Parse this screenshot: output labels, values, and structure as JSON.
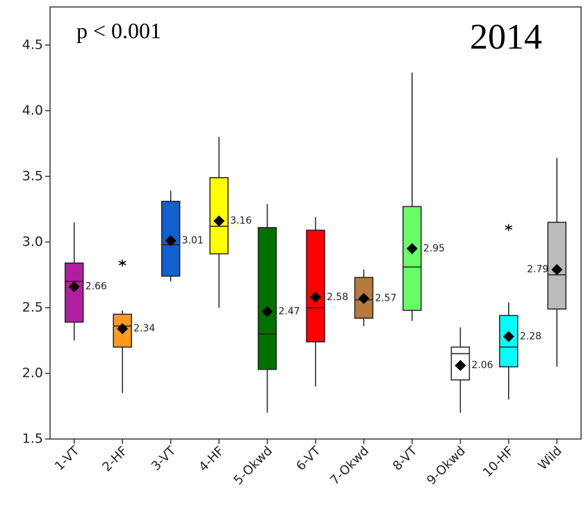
{
  "chart_data": {
    "type": "box",
    "annotations": [
      "p < 0.001",
      "2014"
    ],
    "categories": [
      "1-VT",
      "2-HF",
      "3-VT",
      "4-HF",
      "5-Okwd",
      "6-VT",
      "7-Okwd",
      "8-VT",
      "9-Okwd",
      "10-HF",
      "Wild"
    ],
    "boxes": [
      {
        "color": "#b01fa0",
        "min": 2.25,
        "q1": 2.39,
        "median": 2.7,
        "q3": 2.84,
        "max": 3.15,
        "mean": 2.66
      },
      {
        "color": "#ff9a1a",
        "min": 1.85,
        "q1": 2.2,
        "median": 2.36,
        "q3": 2.45,
        "max": 2.48,
        "mean": 2.34,
        "outliers": [
          2.84
        ]
      },
      {
        "color": "#1060d0",
        "min": 2.7,
        "q1": 2.74,
        "median": 2.98,
        "q3": 3.31,
        "max": 3.39,
        "mean": 3.01
      },
      {
        "color": "#ffff00",
        "min": 2.5,
        "q1": 2.91,
        "median": 3.12,
        "q3": 3.49,
        "max": 3.8,
        "mean": 3.16
      },
      {
        "color": "#007000",
        "min": 1.7,
        "q1": 2.03,
        "median": 2.3,
        "q3": 3.11,
        "max": 3.29,
        "mean": 2.47
      },
      {
        "color": "#ff0000",
        "min": 1.9,
        "q1": 2.24,
        "median": 2.5,
        "q3": 3.09,
        "max": 3.19,
        "mean": 2.58
      },
      {
        "color": "#b57a3c",
        "min": 2.36,
        "q1": 2.42,
        "median": 2.56,
        "q3": 2.73,
        "max": 2.79,
        "mean": 2.57
      },
      {
        "color": "#66ff66",
        "min": 2.4,
        "q1": 2.48,
        "median": 2.81,
        "q3": 3.27,
        "max": 4.29,
        "mean": 2.95
      },
      {
        "color": "#ffffff",
        "min": 1.7,
        "q1": 1.95,
        "median": 2.15,
        "q3": 2.2,
        "max": 2.35,
        "mean": 2.06
      },
      {
        "color": "#00ffff",
        "min": 1.8,
        "q1": 2.05,
        "median": 2.2,
        "q3": 2.44,
        "max": 2.54,
        "mean": 2.28,
        "outliers": [
          3.11
        ]
      },
      {
        "color": "#bbbbbb",
        "min": 2.05,
        "q1": 2.49,
        "median": 2.75,
        "q3": 3.15,
        "max": 3.64,
        "mean": 2.79
      }
    ],
    "ylim": [
      1.5,
      4.79
    ],
    "yticks": [
      1.5,
      {
        "value": 2,
        "label": "2.0"
      },
      2.5,
      {
        "value": 3,
        "label": "3.0"
      },
      3.5,
      {
        "value": 4,
        "label": "4.0"
      },
      4.5
    ]
  }
}
